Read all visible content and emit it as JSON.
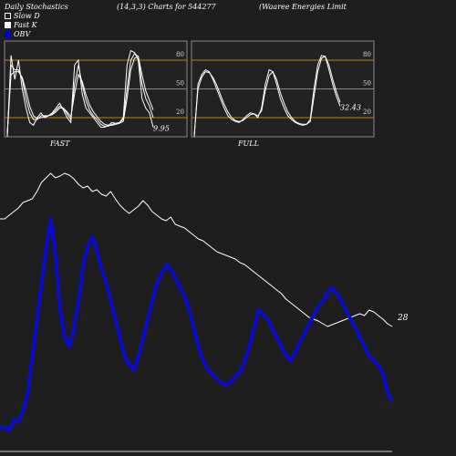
{
  "header": {
    "left": "Daily Stochastics",
    "middle": "(14,3,3) Charts for 544277",
    "right": "(Waaree   Energies Limit"
  },
  "legend": [
    {
      "label": "Slow  D",
      "color": "#ffffff",
      "style": "outline-box"
    },
    {
      "label": "Fast  K",
      "color": "#ffffff",
      "style": "filled-box"
    },
    {
      "label": "OBV",
      "color": "#0000cc",
      "style": "filled-box"
    }
  ],
  "colors": {
    "background": "#1e1e1e",
    "panel": "#222222",
    "grid": "#b8860b",
    "line": "#ffffff",
    "obv": "#0b0bcc"
  },
  "chart_data": [
    {
      "type": "line",
      "title": "FAST",
      "ylim": [
        0,
        100
      ],
      "yticks": [
        "80",
        "50",
        "20"
      ],
      "levels": [
        80,
        50,
        20
      ],
      "last_value_label": "9.95",
      "series": [
        {
          "values": [
            0,
            85,
            60,
            80,
            50,
            30,
            15,
            12,
            20,
            25,
            20,
            22,
            25,
            30,
            35,
            28,
            20,
            15,
            75,
            80,
            45,
            30,
            25,
            20,
            15,
            10,
            10,
            12,
            15,
            14,
            15,
            20,
            75,
            90,
            88,
            80,
            40,
            30,
            25,
            10
          ]
        },
        {
          "values": [
            2,
            75,
            70,
            70,
            60,
            40,
            25,
            18,
            18,
            22,
            22,
            22,
            24,
            28,
            32,
            30,
            24,
            18,
            55,
            75,
            55,
            38,
            28,
            22,
            18,
            13,
            11,
            11,
            13,
            14,
            15,
            18,
            50,
            80,
            87,
            84,
            55,
            40,
            32,
            20
          ]
        },
        {
          "values": [
            4,
            65,
            68,
            68,
            62,
            48,
            32,
            22,
            19,
            20,
            21,
            22,
            23,
            26,
            30,
            30,
            26,
            21,
            45,
            65,
            58,
            44,
            33,
            26,
            21,
            16,
            13,
            12,
            12,
            13,
            14,
            16,
            40,
            70,
            82,
            84,
            65,
            48,
            38,
            28
          ]
        }
      ]
    },
    {
      "type": "line",
      "title": "FULL",
      "ylim": [
        0,
        100
      ],
      "yticks": [
        "80",
        "50",
        "20"
      ],
      "levels": [
        80,
        50,
        20
      ],
      "last_value_label": "32.43",
      "series": [
        {
          "values": [
            0,
            55,
            65,
            70,
            68,
            60,
            50,
            40,
            30,
            22,
            18,
            16,
            15,
            18,
            22,
            25,
            24,
            20,
            30,
            55,
            70,
            68,
            55,
            40,
            30,
            22,
            18,
            15,
            13,
            12,
            13,
            18,
            50,
            75,
            85,
            84,
            70,
            55,
            42,
            32
          ]
        },
        {
          "values": [
            2,
            50,
            62,
            68,
            67,
            62,
            54,
            44,
            34,
            26,
            20,
            17,
            16,
            17,
            20,
            23,
            24,
            22,
            27,
            48,
            64,
            68,
            60,
            46,
            35,
            26,
            20,
            16,
            14,
            13,
            13,
            16,
            42,
            68,
            82,
            84,
            75,
            60,
            47,
            36
          ]
        }
      ]
    },
    {
      "type": "line",
      "title": "",
      "y_label": "28",
      "series": [
        {
          "name": "Price",
          "color": "#ffffff",
          "values": [
            230,
            230,
            226,
            222,
            218,
            212,
            210,
            208,
            200,
            190,
            185,
            180,
            185,
            183,
            180,
            182,
            186,
            192,
            196,
            194,
            200,
            198,
            203,
            205,
            200,
            208,
            215,
            220,
            224,
            220,
            216,
            210,
            215,
            222,
            226,
            230,
            232,
            228,
            236,
            238,
            240,
            244,
            248,
            252,
            254,
            258,
            262,
            266,
            268,
            270,
            272,
            274,
            278,
            280,
            284,
            288,
            292,
            296,
            300,
            304,
            308,
            312,
            318,
            322,
            326,
            330,
            334,
            338,
            340,
            342,
            345,
            348,
            346,
            344,
            342,
            340,
            338,
            336,
            334,
            336,
            330,
            332,
            336,
            340,
            345,
            348
          ]
        },
        {
          "name": "OBV",
          "color": "#0b0bcc",
          "values": [
            20,
            22,
            18,
            30,
            28,
            40,
            60,
            100,
            140,
            180,
            220,
            250,
            210,
            150,
            120,
            110,
            130,
            160,
            200,
            220,
            230,
            215,
            195,
            180,
            160,
            140,
            120,
            100,
            90,
            85,
            100,
            120,
            140,
            160,
            180,
            190,
            200,
            195,
            185,
            175,
            165,
            150,
            130,
            110,
            95,
            85,
            80,
            75,
            70,
            68,
            72,
            78,
            82,
            95,
            110,
            130,
            150,
            145,
            140,
            130,
            120,
            110,
            100,
            95,
            105,
            115,
            125,
            135,
            145,
            155,
            160,
            170,
            175,
            168,
            160,
            150,
            140,
            130,
            120,
            110,
            100,
            95,
            90,
            80,
            60,
            50
          ]
        }
      ]
    }
  ]
}
